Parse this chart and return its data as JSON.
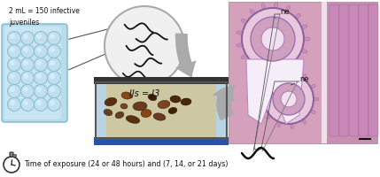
{
  "background_color": "#ffffff",
  "text_top_left": "2 mL = 150 infective\njuveniles",
  "text_ijs": "IJs = J3",
  "text_bottom": "Time of exposure (24 or 48 hours) and (7, 14, or 21 days)",
  "label_ne1": "ne",
  "label_ne2": "ne",
  "plate_color": "#b8dcea",
  "plate_border": "#7ab8d0",
  "plate_highlight": "#d8eef8",
  "well_color": "#c0e0f0",
  "well_border": "#88bcd0",
  "tank_top_color": "#444444",
  "tank_glass_color": "#c8dce8",
  "tank_water_color": "#cfc8a0",
  "tank_base_color": "#2255aa",
  "arrow_color": "#aaaaaa",
  "arrow_edge": "#888888",
  "circle_bg": "#f0f0f0",
  "circle_border": "#aaaaaa",
  "nematode_color": "#111111",
  "hist_bg": "#e8b8d0",
  "figsize": [
    4.29,
    2.0
  ],
  "dpi": 100
}
